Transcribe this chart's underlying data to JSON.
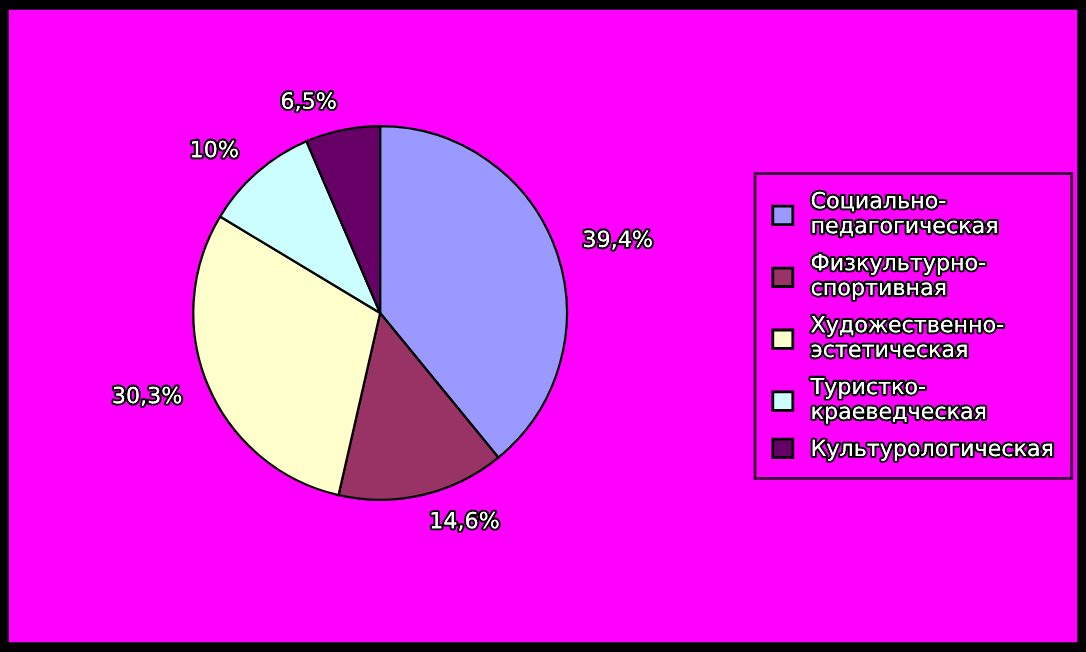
{
  "chart_data": {
    "type": "pie",
    "categories": [
      "Социально-педагогическая",
      "Физкультурно-спортивная",
      "Художественно-эстетическая",
      "Туристко-краеведческая",
      "Культурологическая"
    ],
    "values": [
      39.4,
      14.6,
      30.3,
      10,
      6.5
    ],
    "value_labels": [
      "39,4%",
      "14,6%",
      "30,3%",
      "10%",
      "6,5%"
    ],
    "colors": [
      "#9999ff",
      "#993366",
      "#ffffcc",
      "#ccffff",
      "#660066"
    ],
    "legend": "right"
  }
}
